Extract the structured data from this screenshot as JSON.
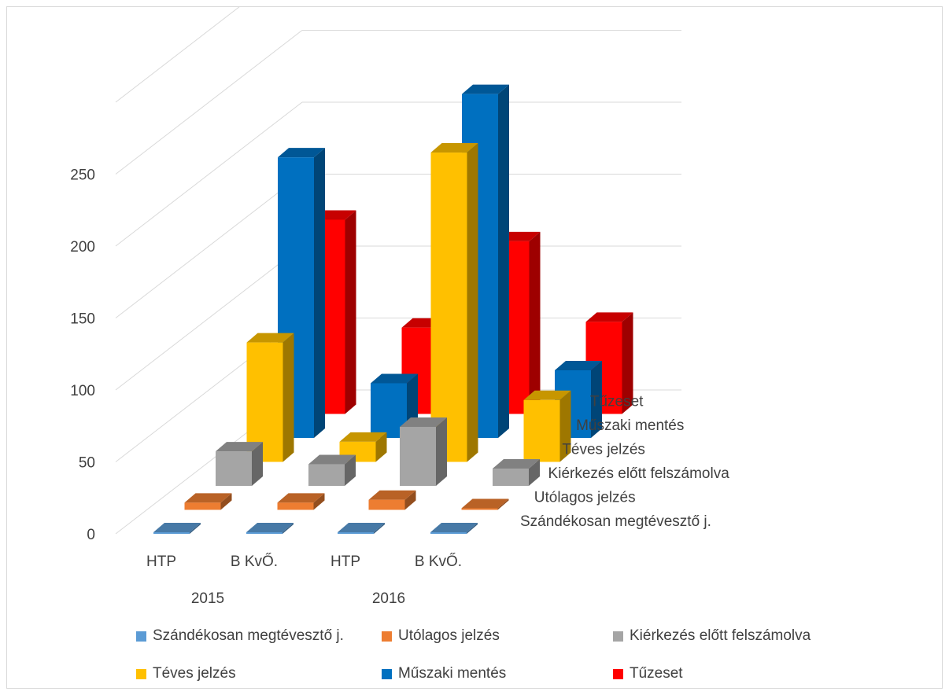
{
  "chart_data": {
    "type": "bar",
    "variant": "3d-column",
    "title": "",
    "xlabel": "",
    "ylabel": "",
    "ylim": [
      0,
      250
    ],
    "yticks": [
      "0",
      "50",
      "100",
      "150",
      "200",
      "250"
    ],
    "categories": [
      "HTP",
      "B KvŐ.",
      "HTP",
      "B KvŐ."
    ],
    "category_groups": [
      "2015",
      "2016"
    ],
    "grid": true,
    "legend_position": "bottom",
    "series": [
      {
        "name": "Szándékosan megtévesztő j.",
        "color": "#5b9bd5",
        "values": [
          1,
          0,
          0,
          0
        ]
      },
      {
        "name": "Utólagos jelzés",
        "color": "#ed7d31",
        "values": [
          5,
          5,
          7,
          1
        ]
      },
      {
        "name": "Kiérkezés előtt felszámolva",
        "color": "#a5a5a5",
        "values": [
          24,
          15,
          41,
          12
        ]
      },
      {
        "name": "Téves jelzés",
        "color": "#ffc000",
        "values": [
          83,
          14,
          215,
          43
        ]
      },
      {
        "name": "Műszaki mentés",
        "color": "#0070c0",
        "values": [
          195,
          38,
          239,
          47
        ]
      },
      {
        "name": "Tűzeset",
        "color": "#ff0000",
        "values": [
          135,
          60,
          120,
          64
        ]
      }
    ]
  }
}
